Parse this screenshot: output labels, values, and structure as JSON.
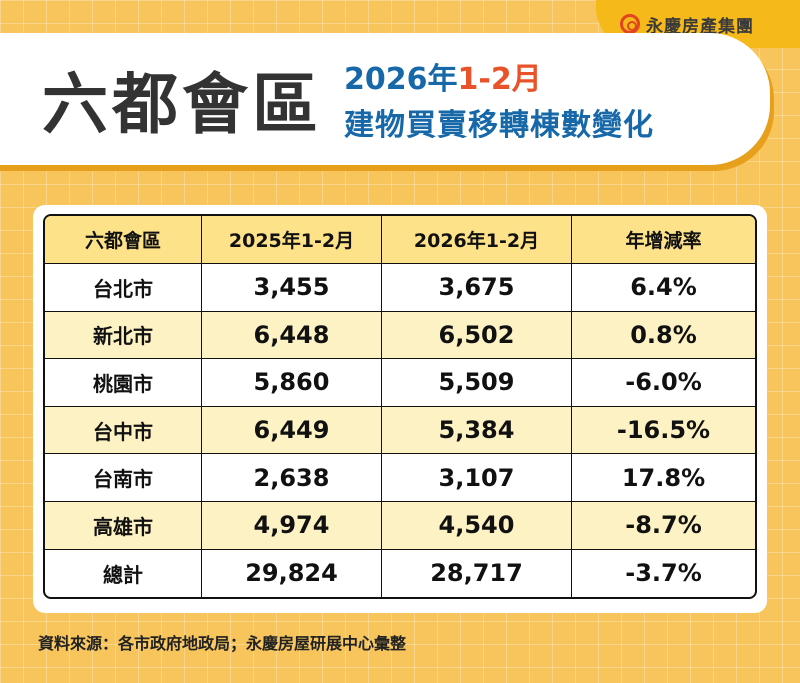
{
  "brand": {
    "name": "永慶房產集團",
    "logo_color": "#e2451f"
  },
  "title": {
    "main": "六都會區",
    "line1_year": "2026年",
    "line1_period": "1-2月",
    "line2": "建物買賣移轉棟數變化"
  },
  "table": {
    "headers": [
      "六都會區",
      "2025年1-2月",
      "2026年1-2月",
      "年增減率"
    ],
    "rows": [
      [
        "台北市",
        "3,455",
        "3,675",
        "6.4%"
      ],
      [
        "新北市",
        "6,448",
        "6,502",
        "0.8%"
      ],
      [
        "桃園市",
        "5,860",
        "5,509",
        "-6.0%"
      ],
      [
        "台中市",
        "6,449",
        "5,384",
        "-16.5%"
      ],
      [
        "台南市",
        "2,638",
        "3,107",
        "17.8%"
      ],
      [
        "高雄市",
        "4,974",
        "4,540",
        "-8.7%"
      ],
      [
        "總計",
        "29,824",
        "28,717",
        "-3.7%"
      ]
    ]
  },
  "footer": "資料來源：各市政府地政局；永慶房屋研展中心彙整"
}
